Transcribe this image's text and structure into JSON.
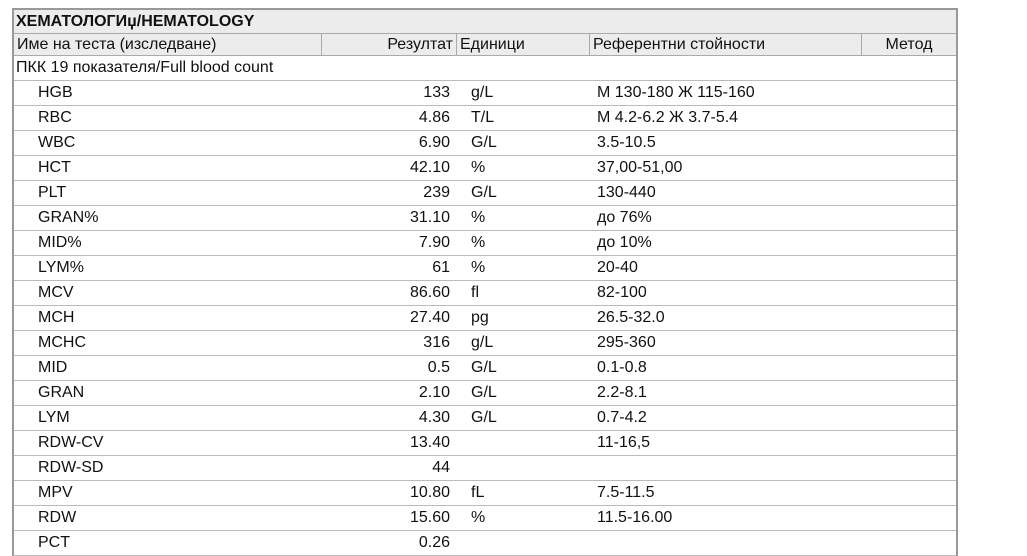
{
  "section_title": "ХЕМАТОЛОГИџ/HEMATOLOGY",
  "columns": {
    "name": "Име на теста (изследване)",
    "result": "Резултат",
    "units": "Единици",
    "reference": "Референтни стойности",
    "method": "Метод"
  },
  "group": "ПКК 19 показателя/Full blood count",
  "rows": [
    {
      "name": "HGB",
      "result": "133",
      "units": "g/L",
      "reference": "M 130-180 Ж 115-160"
    },
    {
      "name": "RBC",
      "result": "4.86",
      "units": "T/L",
      "reference": "M 4.2-6.2 Ж 3.7-5.4"
    },
    {
      "name": "WBC",
      "result": "6.90",
      "units": "G/L",
      "reference": "3.5-10.5"
    },
    {
      "name": "HCT",
      "result": "42.10",
      "units": "%",
      "reference": "37,00-51,00"
    },
    {
      "name": "PLT",
      "result": "239",
      "units": "G/L",
      "reference": "130-440"
    },
    {
      "name": "GRAN%",
      "result": "31.10",
      "units": "%",
      "reference": "до 76%"
    },
    {
      "name": "MID%",
      "result": "7.90",
      "units": "%",
      "reference": "до 10%"
    },
    {
      "name": "LYM%",
      "result": "61",
      "units": "%",
      "reference": "20-40"
    },
    {
      "name": "MCV",
      "result": "86.60",
      "units": "fl",
      "reference": "82-100"
    },
    {
      "name": "MCH",
      "result": "27.40",
      "units": "pg",
      "reference": "26.5-32.0"
    },
    {
      "name": "MCHC",
      "result": "316",
      "units": "g/L",
      "reference": "295-360"
    },
    {
      "name": "MID",
      "result": "0.5",
      "units": "G/L",
      "reference": "0.1-0.8"
    },
    {
      "name": "GRAN",
      "result": "2.10",
      "units": "G/L",
      "reference": "2.2-8.1"
    },
    {
      "name": "LYM",
      "result": "4.30",
      "units": "G/L",
      "reference": "0.7-4.2"
    },
    {
      "name": "RDW-CV",
      "result": "13.40",
      "units": "",
      "reference": "11-16,5"
    },
    {
      "name": "RDW-SD",
      "result": "44",
      "units": "",
      "reference": ""
    },
    {
      "name": "MPV",
      "result": "10.80",
      "units": "fL",
      "reference": "7.5-11.5"
    },
    {
      "name": "RDW",
      "result": "15.60",
      "units": "%",
      "reference": "11.5-16.00"
    },
    {
      "name": "PCT",
      "result": "0.26",
      "units": "",
      "reference": ""
    }
  ]
}
